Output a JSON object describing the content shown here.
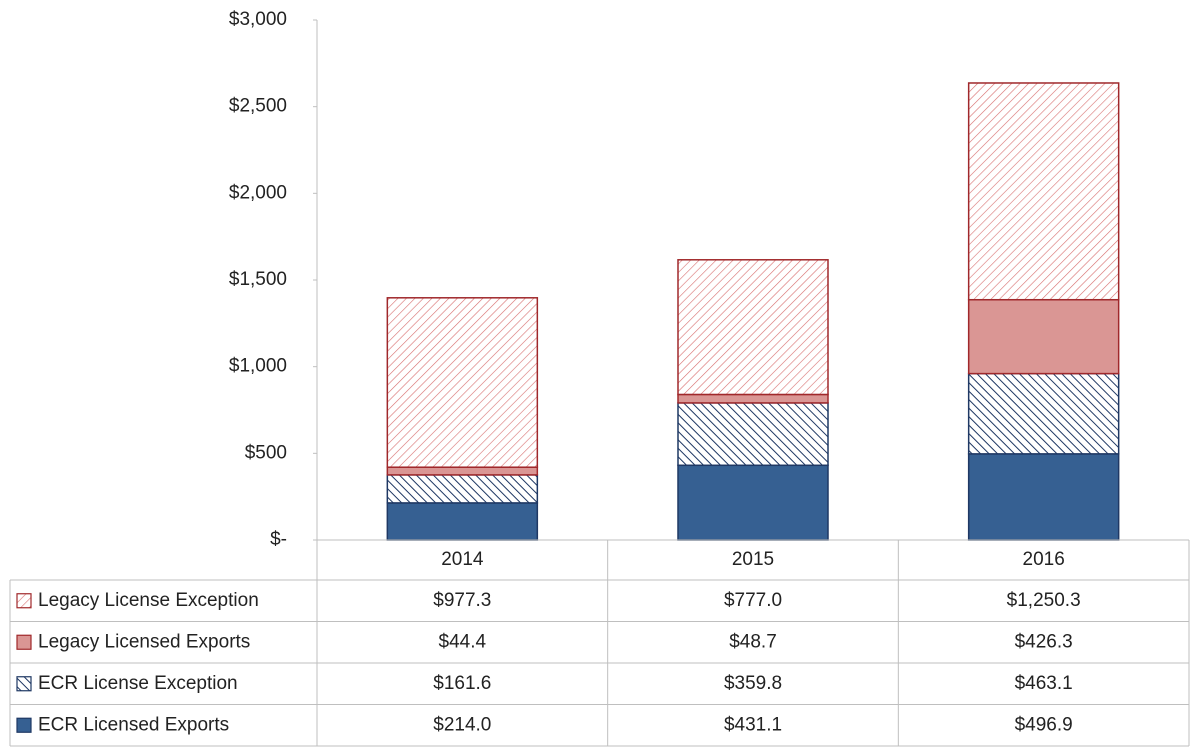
{
  "chart_data": {
    "type": "stacked_bar",
    "categories": [
      "2014",
      "2015",
      "2016"
    ],
    "series": [
      {
        "name": "ECR Licensed Exports",
        "color": "#366092",
        "stroke": "#1f3864",
        "pattern": "solid",
        "values": [
          214.0,
          431.1,
          496.9
        ],
        "value_labels": [
          "$214.0",
          "$431.1",
          "$496.9"
        ]
      },
      {
        "name": "ECR License Exception",
        "color": "#1f3864",
        "stroke": "#1f3864",
        "pattern": "backslash",
        "values": [
          161.6,
          359.8,
          463.1
        ],
        "value_labels": [
          "$161.6",
          "$359.8",
          "$463.1"
        ]
      },
      {
        "name": "Legacy Licensed Exports",
        "color": "#da9694",
        "stroke": "#a0282b",
        "pattern": "solid",
        "values": [
          44.4,
          48.7,
          426.3
        ],
        "value_labels": [
          "$44.4",
          "$48.7",
          "$426.3"
        ]
      },
      {
        "name": "Legacy License Exception",
        "color": "#d86f6f",
        "stroke": "#a0282b",
        "pattern": "slash",
        "values": [
          977.3,
          777.0,
          1250.3
        ],
        "value_labels": [
          "$977.3",
          "$777.0",
          "$1,250.3"
        ]
      }
    ],
    "ylim": [
      0,
      3000
    ],
    "yticks": [
      {
        "value": 0,
        "label": "$-"
      },
      {
        "value": 500,
        "label": "$500"
      },
      {
        "value": 1000,
        "label": "$1,000"
      },
      {
        "value": 1500,
        "label": "$1,500"
      },
      {
        "value": 2000,
        "label": "$2,000"
      },
      {
        "value": 2500,
        "label": "$2,500"
      },
      {
        "value": 3000,
        "label": "$3,000"
      }
    ],
    "grid": false,
    "data_table": true
  }
}
